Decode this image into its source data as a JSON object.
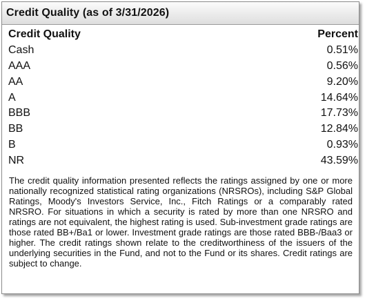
{
  "panel": {
    "title": "Credit Quality (as of 3/31/2026)"
  },
  "table": {
    "headers": {
      "label": "Credit Quality",
      "value": "Percent"
    },
    "rows": [
      {
        "label": "Cash",
        "value": "0.51%"
      },
      {
        "label": "AAA",
        "value": "0.56%"
      },
      {
        "label": "AA",
        "value": "9.20%"
      },
      {
        "label": "A",
        "value": "14.64%"
      },
      {
        "label": "BBB",
        "value": "17.73%"
      },
      {
        "label": "BB",
        "value": "12.84%"
      },
      {
        "label": "B",
        "value": "0.93%"
      },
      {
        "label": "NR",
        "value": "43.59%"
      }
    ]
  },
  "footnote": "The credit quality information presented reflects the ratings assigned by one or more nationally recognized statistical rating organizations (NRSROs), including S&P Global Ratings, Moody's Investors Service, Inc., Fitch Ratings or a comparably rated NRSRO. For situations in which a security is rated by more than one NRSRO and ratings are not equivalent, the highest rating is used. Sub-investment grade ratings are those rated BB+/Ba1 or lower. Investment grade ratings are those rated BBB-/Baa3 or higher. The credit ratings shown relate to the creditworthiness of the issuers of the underlying securities in the Fund, and not to the Fund or its shares. Credit ratings are subject to change."
}
